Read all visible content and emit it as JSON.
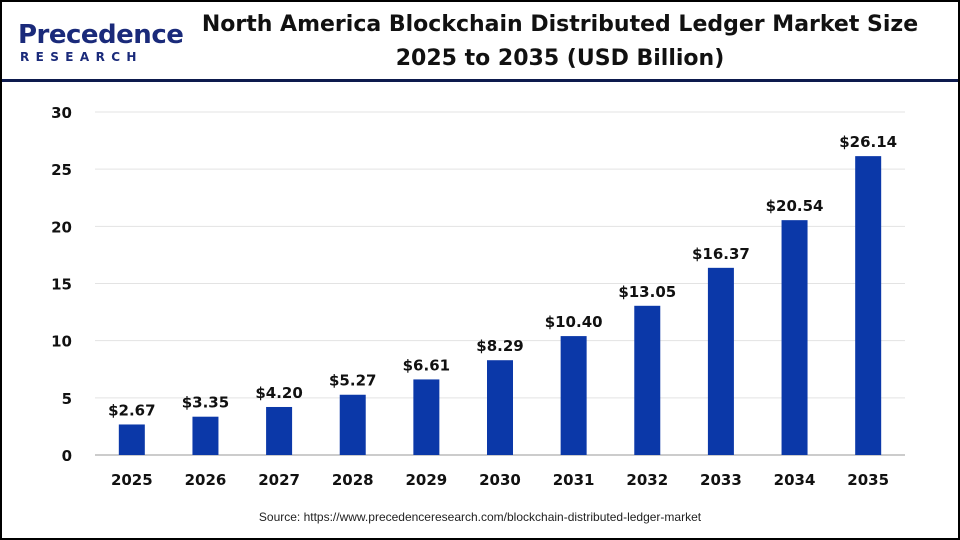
{
  "logo": {
    "text_main": "Precedence",
    "text_sub": "RESEARCH"
  },
  "chart_data": {
    "type": "bar",
    "title": "North America Blockchain Distributed Ledger Market Size 2025 to 2035 (USD Billion)",
    "title_lines": [
      "North America Blockchain Distributed Ledger Market Size",
      "2025 to 2035 (USD Billion)"
    ],
    "categories": [
      "2025",
      "2026",
      "2027",
      "2028",
      "2029",
      "2030",
      "2031",
      "2032",
      "2033",
      "2034",
      "2035"
    ],
    "values": [
      2.67,
      3.35,
      4.2,
      5.27,
      6.61,
      8.29,
      10.4,
      13.05,
      16.37,
      20.54,
      26.14
    ],
    "data_labels": [
      "$2.67",
      "$3.35",
      "$4.20",
      "$5.27",
      "$6.61",
      "$8.29",
      "$10.40",
      "$13.05",
      "$16.37",
      "$20.54",
      "$26.14"
    ],
    "xlabel": "",
    "ylabel": "",
    "ylim": [
      0,
      30
    ],
    "yticks": [
      0,
      5,
      10,
      15,
      20,
      25,
      30
    ],
    "grid": true,
    "bar_color": "#0b38a8"
  },
  "source": "Source: https://www.precedenceresearch.com/blockchain-distributed-ledger-market"
}
